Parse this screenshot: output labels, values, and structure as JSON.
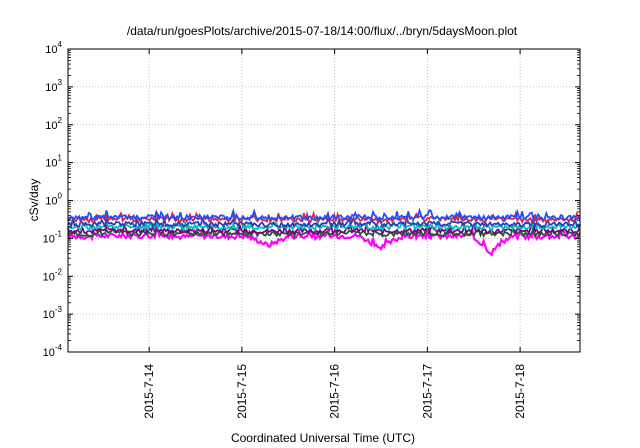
{
  "chart_data": {
    "type": "line",
    "title": "/data/run/goesPlots/archive/2015-07-18/14:00/flux/../bryn/5daysMoon.plot",
    "xlabel": "Coordinated Universal Time (UTC)",
    "ylabel": "cSv/day",
    "yscale": "log",
    "ylim": [
      0.0001,
      10000
    ],
    "y_ticks": [
      {
        "base": "10",
        "exp": "-4"
      },
      {
        "base": "10",
        "exp": "-3"
      },
      {
        "base": "10",
        "exp": "-2"
      },
      {
        "base": "10",
        "exp": "-1"
      },
      {
        "base": "10",
        "exp": "0"
      },
      {
        "base": "10",
        "exp": "1"
      },
      {
        "base": "10",
        "exp": "2"
      },
      {
        "base": "10",
        "exp": "3"
      },
      {
        "base": "10",
        "exp": "4"
      }
    ],
    "x_ticks": [
      "2015-7-14",
      "2015-7-15",
      "2015-7-16",
      "2015-7-17",
      "2015-7-18"
    ],
    "xlim": [
      "2015-07-13T03:00",
      "2015-07-18T15:30"
    ],
    "grid": true,
    "series": [
      {
        "color": "#ff00ff",
        "level": 0.115,
        "values": [
          0.115,
          0.11,
          0.12,
          0.115,
          0.12,
          0.11,
          0.118,
          0.112,
          0.115,
          0.065,
          0.115,
          0.11,
          0.115,
          0.12,
          0.05,
          0.11,
          0.115,
          0.112,
          0.118,
          0.04,
          0.115,
          0.11,
          0.115,
          0.112
        ]
      },
      {
        "color": "#1e5a32",
        "level": 0.135,
        "values": [
          0.135,
          0.13,
          0.14,
          0.135,
          0.14,
          0.13,
          0.138,
          0.132,
          0.135,
          0.13,
          0.135,
          0.13,
          0.135,
          0.14,
          0.13,
          0.135,
          0.14,
          0.132,
          0.138,
          0.13,
          0.135,
          0.13,
          0.135,
          0.132
        ]
      },
      {
        "color": "#800080",
        "level": 0.16,
        "values": [
          0.16,
          0.155,
          0.165,
          0.16,
          0.165,
          0.155,
          0.162,
          0.158,
          0.16,
          0.155,
          0.16,
          0.155,
          0.16,
          0.165,
          0.155,
          0.16,
          0.165,
          0.158,
          0.162,
          0.155,
          0.16,
          0.155,
          0.16,
          0.158
        ]
      },
      {
        "color": "#00bfbf",
        "level": 0.2,
        "values": [
          0.2,
          0.19,
          0.21,
          0.2,
          0.21,
          0.19,
          0.205,
          0.195,
          0.2,
          0.19,
          0.2,
          0.19,
          0.2,
          0.21,
          0.19,
          0.2,
          0.21,
          0.195,
          0.205,
          0.19,
          0.2,
          0.19,
          0.2,
          0.195
        ]
      },
      {
        "color": "#2a3fb0",
        "level": 0.24,
        "values": [
          0.24,
          0.23,
          0.25,
          0.24,
          0.25,
          0.23,
          0.245,
          0.235,
          0.24,
          0.23,
          0.24,
          0.23,
          0.24,
          0.25,
          0.23,
          0.24,
          0.25,
          0.235,
          0.245,
          0.23,
          0.24,
          0.23,
          0.24,
          0.235
        ]
      },
      {
        "color": "#e0204a",
        "level": 0.32,
        "values": [
          0.32,
          0.31,
          0.34,
          0.32,
          0.34,
          0.31,
          0.33,
          0.32,
          0.32,
          0.31,
          0.32,
          0.31,
          0.32,
          0.34,
          0.31,
          0.32,
          0.34,
          0.32,
          0.33,
          0.31,
          0.32,
          0.31,
          0.32,
          0.32
        ]
      },
      {
        "color": "#1f4fff",
        "level": 0.36,
        "values": [
          0.36,
          0.35,
          0.38,
          0.36,
          0.38,
          0.35,
          0.37,
          0.36,
          0.36,
          0.35,
          0.36,
          0.35,
          0.36,
          0.38,
          0.35,
          0.36,
          0.38,
          0.36,
          0.37,
          0.35,
          0.36,
          0.35,
          0.36,
          0.36
        ]
      }
    ]
  }
}
